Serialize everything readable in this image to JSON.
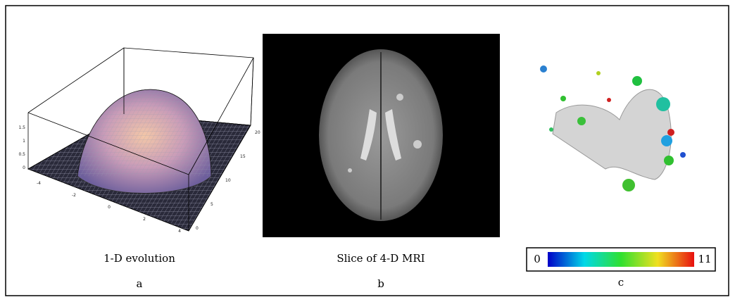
{
  "panels": [
    {
      "caption": "1-D evolution",
      "letter": "a",
      "z_ticks": [
        "1.5",
        "1",
        "0.5",
        "0"
      ],
      "x_ticks": [
        "-4",
        "-2",
        "0",
        "2",
        "4"
      ],
      "y_ticks": [
        "20",
        "15",
        "10",
        "5",
        "0"
      ]
    },
    {
      "caption": "Slice of 4-D MRI",
      "letter": "b"
    },
    {
      "letter": "c",
      "colorbar": {
        "min": "0",
        "max": "11"
      }
    }
  ]
}
